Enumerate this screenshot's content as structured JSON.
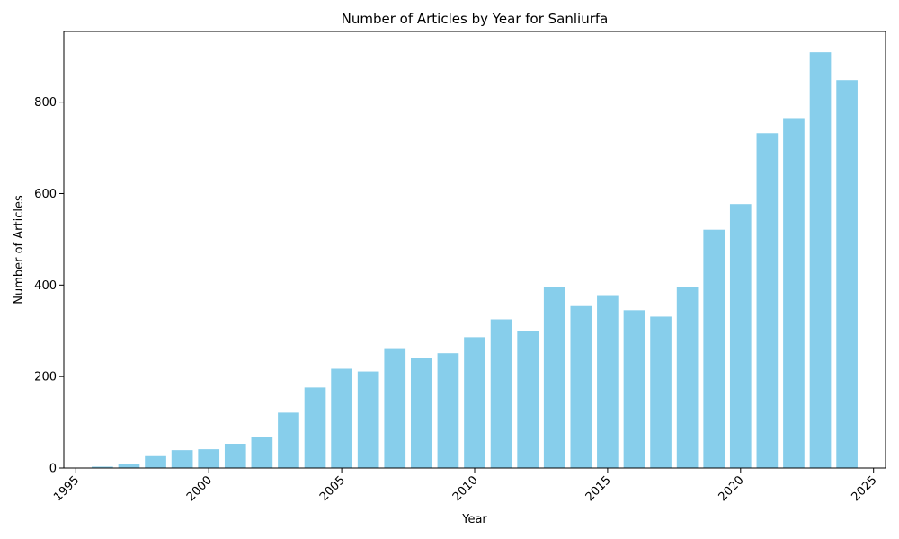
{
  "chart_data": {
    "type": "bar",
    "title": "Number of Articles by Year for Sanliurfa",
    "xlabel": "Year",
    "ylabel": "Number of Articles",
    "x": [
      1996,
      1997,
      1998,
      1999,
      2000,
      2001,
      2002,
      2003,
      2004,
      2005,
      2006,
      2007,
      2008,
      2009,
      2010,
      2011,
      2012,
      2013,
      2014,
      2015,
      2016,
      2017,
      2018,
      2019,
      2020,
      2021,
      2022,
      2023,
      2024
    ],
    "values": [
      3,
      8,
      26,
      39,
      41,
      53,
      68,
      121,
      176,
      217,
      211,
      262,
      240,
      251,
      286,
      325,
      300,
      396,
      354,
      378,
      345,
      331,
      396,
      521,
      577,
      732,
      765,
      909,
      848
    ],
    "xlim": [
      1994.55,
      2025.45
    ],
    "ylim": [
      0,
      954.45
    ],
    "xticks": [
      "1995",
      "2000",
      "2005",
      "2010",
      "2015",
      "2020",
      "2025"
    ],
    "yticks": [
      "0",
      "200",
      "400",
      "600",
      "800"
    ],
    "bar_color": "#87CEEB",
    "grid": false,
    "legend": "none"
  }
}
